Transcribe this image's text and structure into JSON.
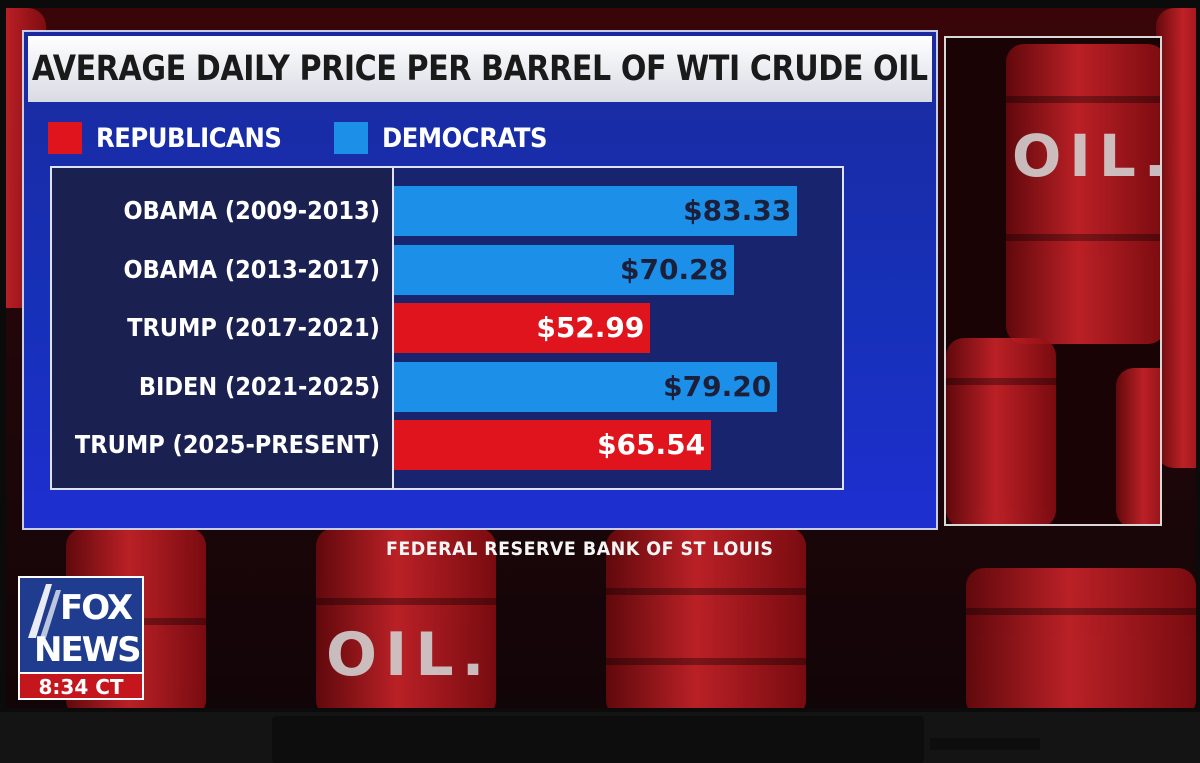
{
  "title": "AVERAGE DAILY PRICE PER BARREL OF WTI CRUDE OIL",
  "legend": [
    {
      "label": "REPUBLICANS",
      "color": "#e0141c"
    },
    {
      "label": "DEMOCRATS",
      "color": "#1c8fe8"
    }
  ],
  "source": "FEDERAL RESERVE BANK OF ST LOUIS",
  "background_text": "OIL.",
  "network": {
    "logo_top": "FOX",
    "logo_bottom": "NEWS",
    "time": "8:34 CT"
  },
  "chart_data": {
    "type": "bar",
    "orientation": "horizontal",
    "title": "AVERAGE DAILY PRICE PER BARREL OF WTI CRUDE OIL",
    "categories": [
      "OBAMA (2009-2013)",
      "OBAMA (2013-2017)",
      "TRUMP (2017-2021)",
      "BIDEN (2021-2025)",
      "TRUMP (2025-PRESENT)"
    ],
    "values": [
      83.33,
      70.28,
      52.99,
      79.2,
      65.54
    ],
    "value_labels": [
      "$83.33",
      "$70.28",
      "$52.99",
      "$79.20",
      "$65.54"
    ],
    "party": [
      "DEMOCRATS",
      "DEMOCRATS",
      "REPUBLICANS",
      "DEMOCRATS",
      "REPUBLICANS"
    ],
    "colors": [
      "#1c8fe8",
      "#1c8fe8",
      "#e0141c",
      "#1c8fe8",
      "#e0141c"
    ],
    "value_label_colors": [
      "#1b1f3a",
      "#1b1f3a",
      "#ffffff",
      "#1b1f3a",
      "#ffffff"
    ],
    "xlim": [
      0,
      93
    ],
    "grid": false,
    "legend": "top-left"
  }
}
